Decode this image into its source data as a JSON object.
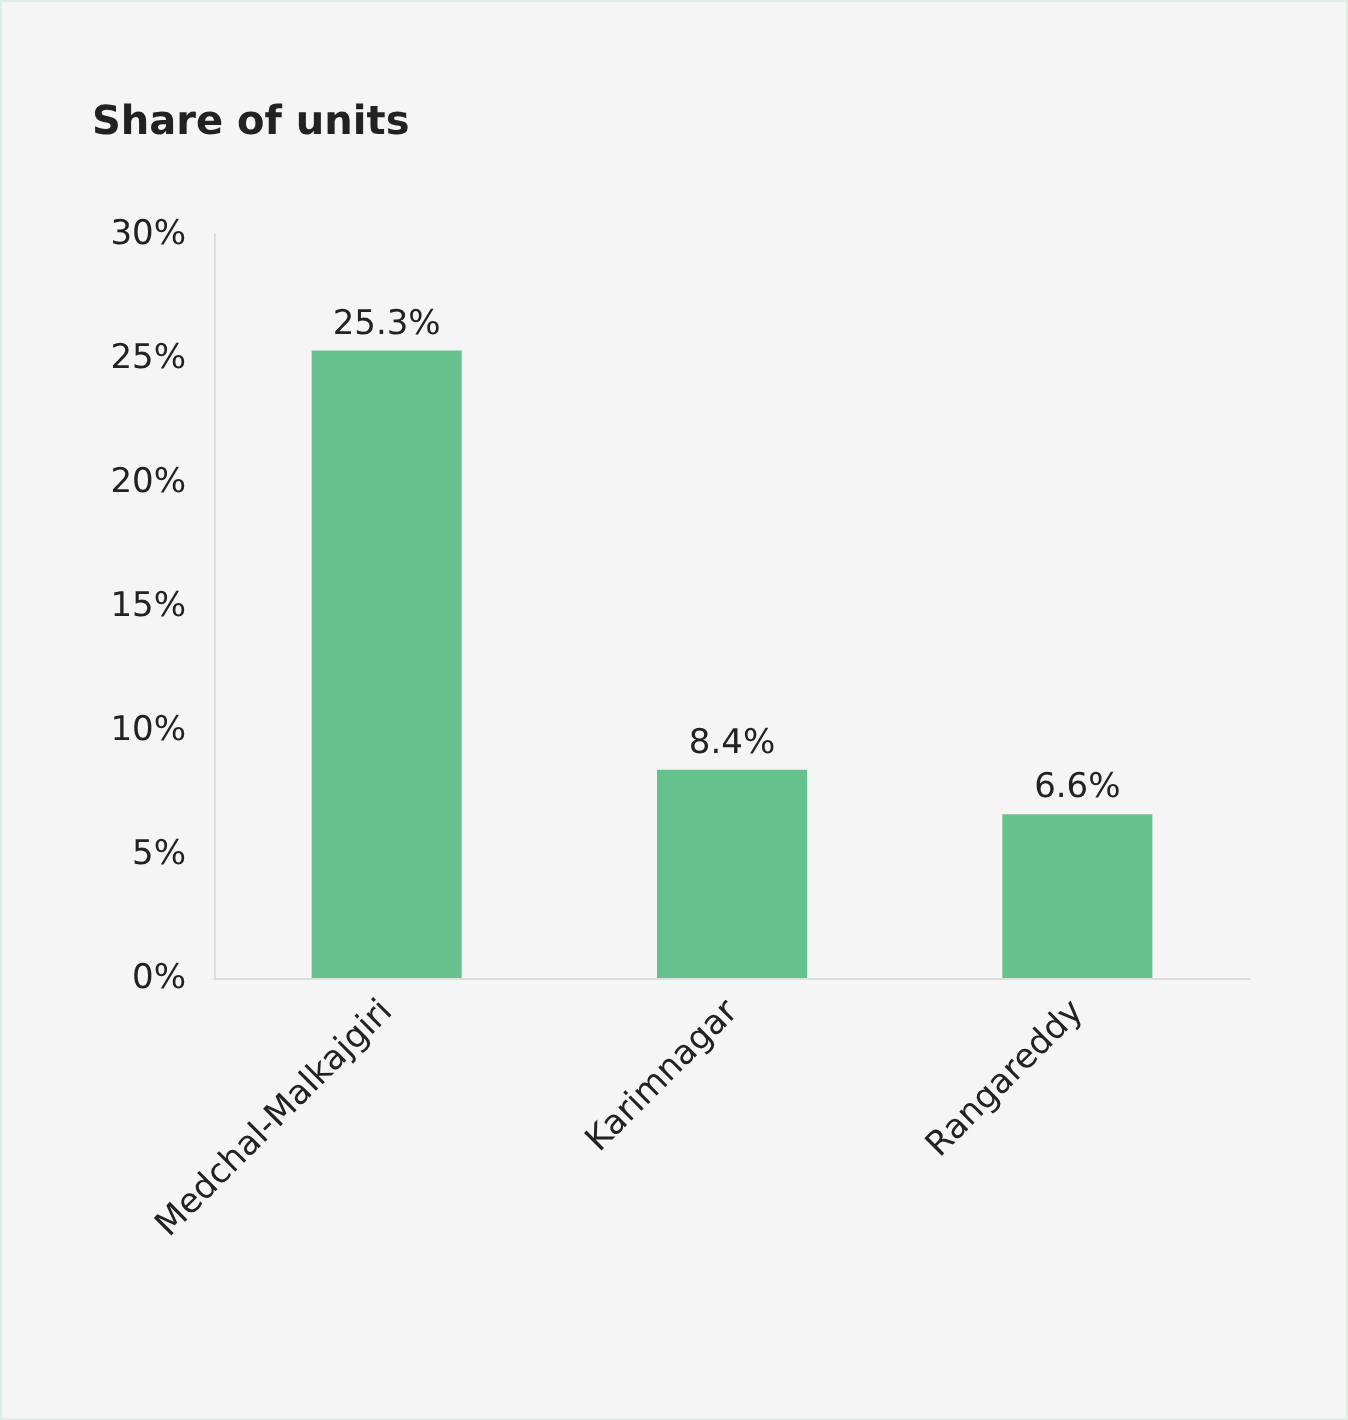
{
  "chart_data": {
    "type": "bar",
    "title": "Share of units",
    "categories": [
      "Medchal-Malkajgiri",
      "Karimnagar",
      "Rangareddy"
    ],
    "values": [
      25.3,
      8.4,
      6.6
    ],
    "value_labels": [
      "25.3%",
      "8.4%",
      "6.6%"
    ],
    "color": "#66c28c",
    "ylim": [
      0,
      30
    ],
    "yticks": [
      {
        "value": 0,
        "label": "0%"
      },
      {
        "value": 5,
        "label": "5%"
      },
      {
        "value": 10,
        "label": "10%"
      },
      {
        "value": 15,
        "label": "15%"
      },
      {
        "value": 20,
        "label": "20%"
      },
      {
        "value": 25,
        "label": "25%"
      },
      {
        "value": 30,
        "label": "30%"
      }
    ],
    "grid": false
  }
}
